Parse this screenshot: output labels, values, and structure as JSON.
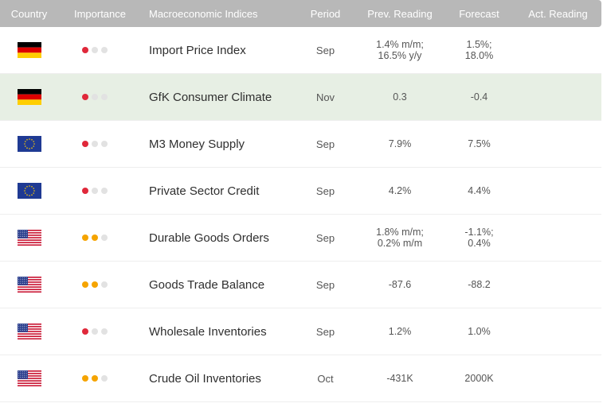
{
  "header": {
    "country": "Country",
    "importance": "Importance",
    "indices": "Macroeconomic Indices",
    "period": "Period",
    "prev": "Prev. Reading",
    "forecast": "Forecast",
    "actual": "Act. Reading"
  },
  "colors": {
    "high": "#e0283a",
    "medium": "#f5a400",
    "off": "#e2e2e2",
    "highlight_row": "#e7efe4"
  },
  "rows": [
    {
      "country": "germany-flag-icon",
      "importance": 1,
      "importance_color": "red",
      "indicator": "Import Price Index",
      "period": "Sep",
      "prev": [
        "1.4% m/m;",
        "16.5% y/y"
      ],
      "forecast": [
        "1.5%;",
        "18.0%"
      ],
      "actual": ""
    },
    {
      "country": "germany-flag-icon",
      "importance": 1,
      "importance_color": "red",
      "indicator": "GfK Consumer Climate",
      "period": "Nov",
      "prev": [
        "0.3"
      ],
      "forecast": [
        "-0.4"
      ],
      "actual": ""
    },
    {
      "country": "eu-flag-icon",
      "importance": 1,
      "importance_color": "red",
      "indicator": "M3 Money Supply",
      "period": "Sep",
      "prev": [
        "7.9%"
      ],
      "forecast": [
        "7.5%"
      ],
      "actual": ""
    },
    {
      "country": "eu-flag-icon",
      "importance": 1,
      "importance_color": "red",
      "indicator": "Private Sector Credit",
      "period": "Sep",
      "prev": [
        "4.2%"
      ],
      "forecast": [
        "4.4%"
      ],
      "actual": ""
    },
    {
      "country": "us-flag-icon",
      "importance": 2,
      "importance_color": "amber",
      "indicator": "Durable Goods Orders",
      "period": "Sep",
      "prev": [
        "1.8% m/m;",
        "0.2% m/m"
      ],
      "forecast": [
        "-1.1%;",
        "0.4%"
      ],
      "actual": ""
    },
    {
      "country": "us-flag-icon",
      "importance": 2,
      "importance_color": "amber",
      "indicator": "Goods Trade Balance",
      "period": "Sep",
      "prev": [
        "-87.6"
      ],
      "forecast": [
        "-88.2"
      ],
      "actual": ""
    },
    {
      "country": "us-flag-icon",
      "importance": 1,
      "importance_color": "red",
      "indicator": "Wholesale Inventories",
      "period": "Sep",
      "prev": [
        "1.2%"
      ],
      "forecast": [
        "1.0%"
      ],
      "actual": ""
    },
    {
      "country": "us-flag-icon",
      "importance": 2,
      "importance_color": "amber",
      "indicator": "Crude Oil Inventories",
      "period": "Oct",
      "prev": [
        "-431K"
      ],
      "forecast": [
        "2000K"
      ],
      "actual": ""
    }
  ]
}
